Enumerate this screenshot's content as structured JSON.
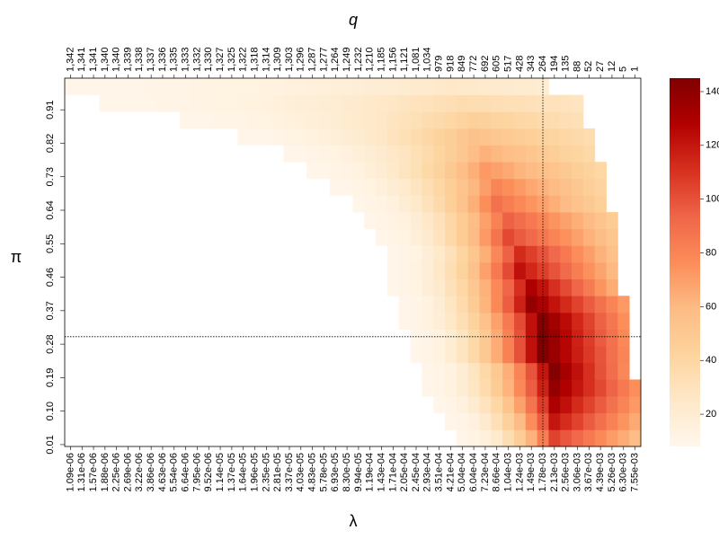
{
  "chart_data": {
    "type": "heatmap",
    "top_label": "q",
    "x_label": "λ",
    "y_label": "π",
    "categories": [
      "1.09e-06",
      "1.31e-06",
      "1.57e-06",
      "1.88e-06",
      "2.25e-06",
      "2.69e-06",
      "3.22e-06",
      "3.86e-06",
      "4.63e-06",
      "5.54e-06",
      "6.64e-06",
      "7.95e-06",
      "9.52e-06",
      "1.14e-05",
      "1.37e-05",
      "1.64e-05",
      "1.96e-05",
      "2.35e-05",
      "2.81e-05",
      "3.37e-05",
      "4.03e-05",
      "4.83e-05",
      "5.78e-05",
      "6.93e-05",
      "8.30e-05",
      "9.94e-05",
      "1.19e-04",
      "1.43e-04",
      "1.71e-04",
      "2.05e-04",
      "2.45e-04",
      "2.93e-04",
      "3.51e-04",
      "4.21e-04",
      "5.04e-04",
      "6.04e-04",
      "7.23e-04",
      "8.66e-04",
      "1.04e-03",
      "1.24e-03",
      "1.49e-03",
      "1.78e-03",
      "2.13e-03",
      "2.56e-03",
      "3.06e-03",
      "3.67e-03",
      "4.39e-03",
      "5.26e-03",
      "6.30e-03",
      "7.55e-03"
    ],
    "top_categories": [
      "1,342",
      "1,341",
      "1,341",
      "1,340",
      "1,340",
      "1,339",
      "1,338",
      "1,337",
      "1,336",
      "1,335",
      "1,333",
      "1,332",
      "1,330",
      "1,327",
      "1,325",
      "1,322",
      "1,318",
      "1,314",
      "1,309",
      "1,303",
      "1,296",
      "1,287",
      "1,277",
      "1,264",
      "1,249",
      "1,232",
      "1,210",
      "1,185",
      "1,156",
      "1,121",
      "1,081",
      "1,034",
      "979",
      "918",
      "849",
      "772",
      "692",
      "605",
      "517",
      "428",
      "343",
      "264",
      "194",
      "135",
      "88",
      "52",
      "27",
      "12",
      "5",
      "1"
    ],
    "ylim": [
      0.005,
      0.995
    ],
    "yticks": [
      0.01,
      {
        "value": 0.1,
        "label": "0.10"
      },
      0.19,
      0.28,
      0.37,
      0.46,
      0.55,
      0.64,
      0.73,
      0.82,
      0.91
    ],
    "y_bins": [
      0.005,
      0.05,
      0.095,
      0.14,
      0.185,
      0.23,
      0.275,
      0.32,
      0.365,
      0.41,
      0.455,
      0.5,
      0.545,
      0.59,
      0.635,
      0.68,
      0.725,
      0.77,
      0.815,
      0.86,
      0.905,
      0.95,
      0.995
    ],
    "z": [
      [
        null,
        null,
        null,
        null,
        null,
        null,
        null,
        null,
        null,
        null,
        null,
        null,
        null,
        null,
        null,
        null,
        null,
        null,
        null,
        null,
        null,
        null,
        null,
        null,
        null,
        null,
        null,
        null,
        null,
        null,
        null,
        null,
        null,
        null,
        10,
        12,
        16,
        23,
        34,
        47,
        63,
        83,
        105,
        98,
        92,
        85,
        78,
        71,
        65,
        58
      ],
      [
        null,
        null,
        null,
        null,
        null,
        null,
        null,
        null,
        null,
        null,
        null,
        null,
        null,
        null,
        null,
        null,
        null,
        null,
        null,
        null,
        null,
        null,
        null,
        null,
        null,
        null,
        null,
        null,
        null,
        null,
        null,
        null,
        null,
        10,
        11,
        15,
        22,
        32,
        44,
        59,
        77,
        97,
        120,
        112,
        105,
        97,
        89,
        81,
        74,
        66
      ],
      [
        null,
        null,
        null,
        null,
        null,
        null,
        null,
        null,
        null,
        null,
        null,
        null,
        null,
        null,
        null,
        null,
        null,
        null,
        null,
        null,
        null,
        null,
        null,
        null,
        null,
        null,
        null,
        null,
        null,
        null,
        null,
        null,
        10,
        11,
        15,
        21,
        29,
        40,
        53,
        69,
        87,
        107,
        130,
        122,
        113,
        105,
        97,
        88,
        80,
        72
      ],
      [
        null,
        null,
        null,
        null,
        null,
        null,
        null,
        null,
        null,
        null,
        null,
        null,
        null,
        null,
        null,
        null,
        null,
        null,
        null,
        null,
        null,
        null,
        null,
        null,
        null,
        null,
        null,
        null,
        null,
        null,
        null,
        10,
        11,
        14,
        19,
        27,
        36,
        48,
        62,
        78,
        96,
        116,
        138,
        129,
        120,
        111,
        103,
        94,
        85,
        76
      ],
      [
        null,
        null,
        null,
        null,
        null,
        null,
        null,
        null,
        null,
        null,
        null,
        null,
        null,
        null,
        null,
        null,
        null,
        null,
        null,
        null,
        null,
        null,
        null,
        null,
        null,
        null,
        null,
        null,
        null,
        null,
        null,
        10,
        11,
        14,
        20,
        28,
        38,
        50,
        64,
        80,
        99,
        120,
        143,
        132,
        122,
        111,
        100,
        90,
        79,
        null
      ],
      [
        null,
        null,
        null,
        null,
        null,
        null,
        null,
        null,
        null,
        null,
        null,
        null,
        null,
        null,
        null,
        null,
        null,
        null,
        null,
        null,
        null,
        null,
        null,
        null,
        null,
        null,
        null,
        null,
        null,
        null,
        10,
        11,
        14,
        20,
        28,
        38,
        50,
        65,
        81,
        100,
        122,
        145,
        136,
        126,
        117,
        108,
        99,
        89,
        80,
        null
      ],
      [
        null,
        null,
        null,
        null,
        null,
        null,
        null,
        null,
        null,
        null,
        null,
        null,
        null,
        null,
        null,
        null,
        null,
        null,
        null,
        null,
        null,
        null,
        null,
        null,
        null,
        null,
        null,
        null,
        null,
        null,
        10,
        11,
        14,
        20,
        28,
        38,
        50,
        65,
        81,
        100,
        122,
        145,
        136,
        126,
        116,
        107,
        97,
        88,
        78,
        null
      ],
      [
        null,
        null,
        null,
        null,
        null,
        null,
        null,
        null,
        null,
        null,
        null,
        null,
        null,
        null,
        null,
        null,
        null,
        null,
        null,
        null,
        null,
        null,
        null,
        null,
        null,
        null,
        null,
        null,
        null,
        10,
        11,
        14,
        18,
        25,
        33,
        43,
        55,
        69,
        85,
        102,
        122,
        143,
        133,
        124,
        114,
        105,
        95,
        86,
        76,
        null
      ],
      [
        null,
        null,
        null,
        null,
        null,
        null,
        null,
        null,
        null,
        null,
        null,
        null,
        null,
        null,
        null,
        null,
        null,
        null,
        null,
        null,
        null,
        null,
        null,
        null,
        null,
        null,
        null,
        null,
        null,
        10,
        11,
        14,
        19,
        27,
        36,
        48,
        62,
        78,
        96,
        116,
        138,
        130,
        121,
        113,
        105,
        97,
        88,
        80,
        72,
        null
      ],
      [
        null,
        null,
        null,
        null,
        null,
        null,
        null,
        null,
        null,
        null,
        null,
        null,
        null,
        null,
        null,
        null,
        null,
        null,
        null,
        null,
        null,
        null,
        null,
        null,
        null,
        null,
        null,
        null,
        10,
        11,
        13,
        18,
        23,
        31,
        40,
        51,
        63,
        78,
        93,
        111,
        130,
        121,
        111,
        102,
        93,
        84,
        74,
        65,
        null,
        null
      ],
      [
        null,
        null,
        null,
        null,
        null,
        null,
        null,
        null,
        null,
        null,
        null,
        null,
        null,
        null,
        null,
        null,
        null,
        null,
        null,
        null,
        null,
        null,
        null,
        null,
        null,
        null,
        null,
        null,
        10,
        11,
        14,
        18,
        25,
        33,
        43,
        55,
        69,
        85,
        102,
        122,
        114,
        106,
        99,
        91,
        83,
        75,
        68,
        60,
        null,
        null
      ],
      [
        null,
        null,
        null,
        null,
        null,
        null,
        null,
        null,
        null,
        null,
        null,
        null,
        null,
        null,
        null,
        null,
        null,
        null,
        null,
        null,
        null,
        null,
        null,
        null,
        null,
        null,
        null,
        null,
        10,
        11,
        13,
        18,
        24,
        31,
        41,
        52,
        64,
        79,
        95,
        113,
        106,
        99,
        92,
        85,
        77,
        70,
        63,
        56,
        null,
        null
      ],
      [
        null,
        null,
        null,
        null,
        null,
        null,
        null,
        null,
        null,
        null,
        null,
        null,
        null,
        null,
        null,
        null,
        null,
        null,
        null,
        null,
        null,
        null,
        null,
        null,
        null,
        null,
        null,
        10,
        11,
        13,
        17,
        22,
        29,
        38,
        48,
        59,
        72,
        87,
        103,
        97,
        92,
        86,
        80,
        75,
        69,
        63,
        58,
        52,
        null,
        null
      ],
      [
        null,
        null,
        null,
        null,
        null,
        null,
        null,
        null,
        null,
        null,
        null,
        null,
        null,
        null,
        null,
        null,
        null,
        null,
        null,
        null,
        null,
        null,
        null,
        null,
        null,
        null,
        10,
        11,
        12,
        15,
        19,
        25,
        31,
        39,
        48,
        58,
        69,
        81,
        95,
        90,
        85,
        80,
        74,
        69,
        64,
        59,
        53,
        48,
        null,
        null
      ],
      [
        null,
        null,
        null,
        null,
        null,
        null,
        null,
        null,
        null,
        null,
        null,
        null,
        null,
        null,
        null,
        null,
        null,
        null,
        null,
        null,
        null,
        null,
        null,
        null,
        null,
        10,
        11,
        12,
        15,
        19,
        24,
        30,
        37,
        45,
        54,
        64,
        76,
        88,
        83,
        78,
        74,
        69,
        64,
        59,
        54,
        50,
        45,
        null,
        null,
        null
      ],
      [
        null,
        null,
        null,
        null,
        null,
        null,
        null,
        null,
        null,
        null,
        null,
        null,
        null,
        null,
        null,
        null,
        null,
        null,
        null,
        null,
        null,
        null,
        null,
        10,
        10,
        11,
        13,
        16,
        19,
        23,
        28,
        33,
        39,
        46,
        53,
        61,
        70,
        80,
        76,
        72,
        67,
        63,
        59,
        55,
        51,
        46,
        42,
        null,
        null,
        null
      ],
      [
        null,
        null,
        null,
        null,
        null,
        null,
        null,
        null,
        null,
        null,
        null,
        null,
        null,
        null,
        null,
        null,
        null,
        null,
        null,
        null,
        null,
        10,
        10,
        11,
        12,
        14,
        17,
        20,
        24,
        28,
        32,
        38,
        43,
        50,
        57,
        64,
        72,
        69,
        66,
        62,
        59,
        56,
        53,
        50,
        46,
        43,
        40,
        null,
        null,
        null
      ],
      [
        null,
        null,
        null,
        null,
        null,
        null,
        null,
        null,
        null,
        null,
        null,
        null,
        null,
        null,
        null,
        null,
        null,
        null,
        null,
        10,
        10,
        11,
        12,
        13,
        15,
        17,
        19,
        22,
        25,
        28,
        32,
        36,
        41,
        46,
        51,
        57,
        63,
        60,
        57,
        55,
        52,
        49,
        46,
        43,
        41,
        38,
        null,
        null,
        null,
        null
      ],
      [
        null,
        null,
        null,
        null,
        null,
        null,
        null,
        null,
        null,
        null,
        null,
        null,
        null,
        null,
        null,
        10,
        10,
        10,
        11,
        12,
        13,
        14,
        16,
        17,
        19,
        21,
        24,
        26,
        29,
        32,
        35,
        39,
        43,
        46,
        51,
        55,
        53,
        51,
        49,
        47,
        45,
        43,
        41,
        39,
        37,
        35,
        null,
        null,
        null,
        null
      ],
      [
        null,
        null,
        null,
        null,
        null,
        null,
        null,
        null,
        null,
        null,
        10,
        10,
        10,
        11,
        11,
        11,
        12,
        13,
        14,
        15,
        16,
        17,
        18,
        19,
        21,
        23,
        24,
        26,
        28,
        30,
        32,
        35,
        37,
        40,
        42,
        45,
        44,
        42,
        41,
        39,
        38,
        36,
        35,
        33,
        32,
        null,
        null,
        null,
        null,
        null
      ],
      [
        null,
        null,
        null,
        10,
        10,
        10,
        10,
        10,
        11,
        11,
        11,
        12,
        12,
        13,
        13,
        14,
        14,
        15,
        16,
        17,
        18,
        18,
        19,
        20,
        22,
        23,
        24,
        25,
        26,
        28,
        29,
        30,
        32,
        33,
        35,
        34,
        34,
        33,
        32,
        32,
        31,
        30,
        30,
        29,
        28,
        null,
        null,
        null,
        null,
        null
      ],
      [
        10,
        10,
        10,
        10,
        10,
        10,
        10,
        11,
        11,
        11,
        11,
        12,
        12,
        12,
        13,
        13,
        13,
        14,
        14,
        15,
        15,
        16,
        16,
        17,
        17,
        18,
        19,
        19,
        20,
        21,
        22,
        23,
        24,
        25,
        24,
        24,
        23,
        22,
        22,
        21,
        21,
        20,
        null,
        null,
        null,
        null,
        null,
        null,
        null,
        null
      ]
    ],
    "zlim": [
      8,
      145
    ],
    "zticks": [
      20,
      40,
      60,
      80,
      100,
      120,
      140
    ],
    "colorscale": [
      "#fff7ec",
      "#fee8c8",
      "#fdd49e",
      "#fdbb84",
      "#fc8d59",
      "#ef6548",
      "#d7301f",
      "#b30000",
      "#7f0000"
    ],
    "vline": "1.78e-03",
    "hline": 0.3
  }
}
